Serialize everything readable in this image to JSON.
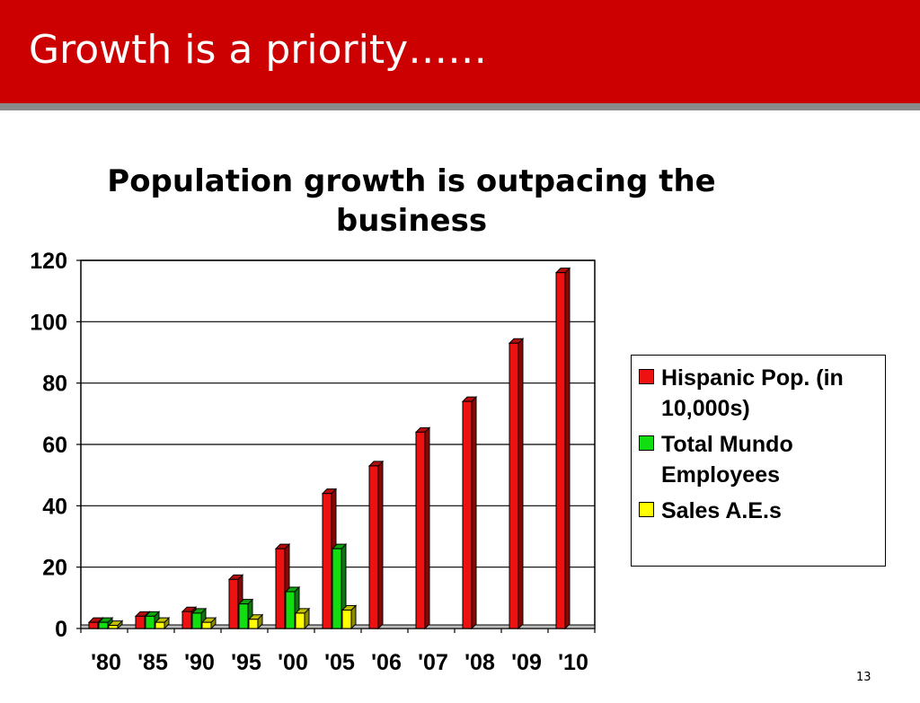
{
  "slide": {
    "title": "Growth is a priority……",
    "page_number": "13"
  },
  "colors": {
    "title_bar": "#cc0000",
    "hispanic": "#ee1111",
    "employees": "#11dd11",
    "sales": "#ffff00"
  },
  "chart_data": {
    "type": "bar",
    "title": "Population growth is outpacing the business",
    "xlabel": "",
    "ylabel": "",
    "ylim": [
      0,
      120
    ],
    "yticks": [
      0,
      20,
      40,
      60,
      80,
      100,
      120
    ],
    "grid": true,
    "legend_position": "right",
    "categories": [
      "'80",
      "'85",
      "'90",
      "'95",
      "'00",
      "'05",
      "'06",
      "'07",
      "'08",
      "'09",
      "'10"
    ],
    "series": [
      {
        "name": "Hispanic Pop. (in 10,000s)",
        "color": "#ee1111",
        "values": [
          2,
          4,
          5.5,
          16,
          26,
          44,
          53,
          64,
          74,
          93,
          116
        ]
      },
      {
        "name": "Total Mundo Employees",
        "color": "#11dd11",
        "values": [
          2,
          4,
          5,
          8,
          12,
          26,
          0,
          0,
          0,
          0,
          0
        ]
      },
      {
        "name": "Sales A.E.s",
        "color": "#ffff00",
        "values": [
          1,
          2,
          2,
          3,
          5,
          6,
          0,
          0,
          0,
          0,
          0
        ]
      }
    ]
  }
}
